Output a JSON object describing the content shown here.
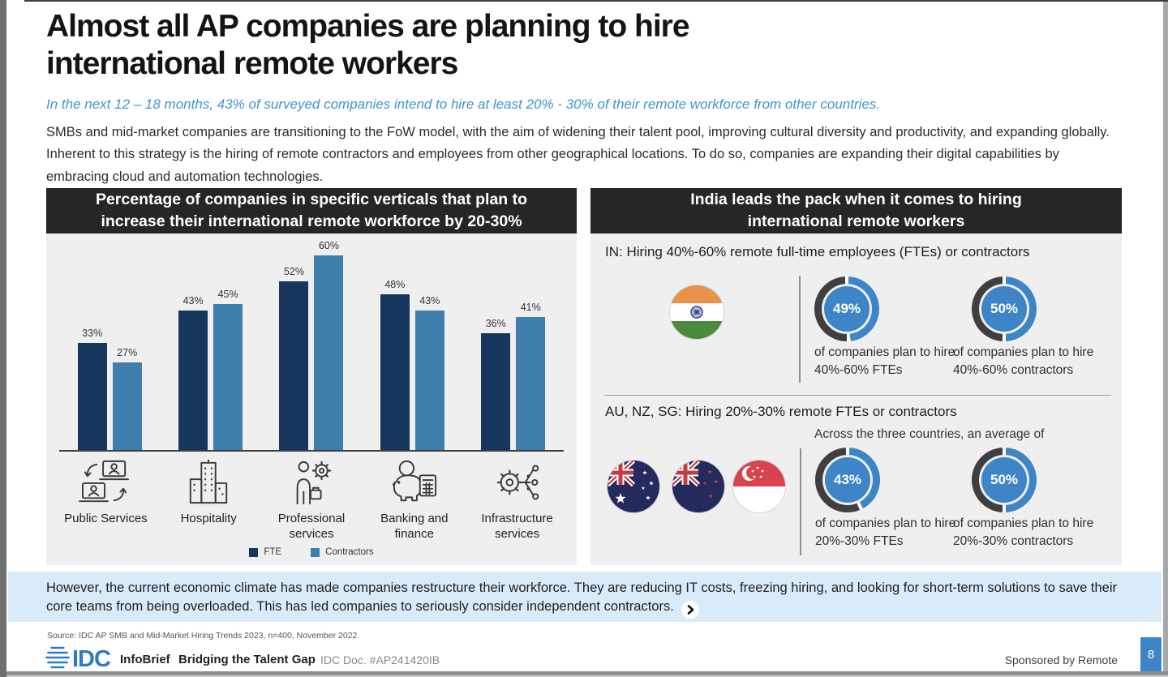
{
  "page": {
    "title": "Almost all AP companies are planning to hire international remote workers",
    "subtitle": "In the next 12 – 18 months, 43% of surveyed companies intend to hire at least 20% - 30% of their remote workforce from other countries.",
    "intro": "SMBs and mid-market companies are transitioning to the FoW model, with the aim of widening their talent pool, improving cultural diversity and productivity, and expanding globally. Inherent to this strategy is the hiring of remote contractors and employees from other geographical locations. To do so, companies are expanding their digital capabilities by embracing cloud and automation technologies."
  },
  "chart_data": {
    "type": "bar",
    "title": "Percentage of companies in specific verticals that plan to increase their international remote workforce by 20-30%",
    "categories": [
      "Public Services",
      "Hospitality",
      "Professional services",
      "Banking and finance",
      "Infrastructure services"
    ],
    "series": [
      {
        "name": "FTE",
        "color": "#17365d",
        "values": [
          33,
          43,
          52,
          48,
          36
        ]
      },
      {
        "name": "Contractors",
        "color": "#3e7fad",
        "values": [
          27,
          45,
          60,
          43,
          41
        ]
      }
    ],
    "unit": "%",
    "ylim": [
      0,
      65
    ],
    "grid": false,
    "legend_position": "bottom"
  },
  "right_panel": {
    "header": "India leads the pack when it comes to hiring international remote workers",
    "sections": [
      {
        "label": "IN: Hiring 40%-60% remote full-time employees (FTEs) or contractors",
        "flags": [
          "India"
        ],
        "donuts": [
          {
            "pct": 49,
            "value": "49%",
            "caption": "of companies plan to hire 40%-60% FTEs"
          },
          {
            "pct": 50,
            "value": "50%",
            "caption": "of companies plan to hire 40%-60% contractors"
          }
        ]
      },
      {
        "label": "AU, NZ, SG: Hiring 20%-30% remote FTEs or contractors",
        "note": "Across the three countries, an average of",
        "flags": [
          "Australia",
          "New Zealand",
          "Singapore"
        ],
        "donuts": [
          {
            "pct": 43,
            "value": "43%",
            "caption": "of companies plan to hire 20%-30% FTEs"
          },
          {
            "pct": 50,
            "value": "50%",
            "caption": "of companies plan to hire 20%-30% contractors"
          }
        ]
      }
    ]
  },
  "banner": {
    "text": "However, the current economic climate has made companies restructure their workforce. They are reducing IT costs, freezing hiring, and looking for short-term solutions to save their core teams from being overloaded. This has led companies to seriously consider independent contractors.",
    "chevron_icon": "chevron-right"
  },
  "footer": {
    "source": "Source: IDC AP SMB and Mid-Market Hiring Trends 2023, n=400, November 2022",
    "logo_text": "IDC",
    "infobrief": "InfoBrief",
    "brand": "Bridging the Talent Gap",
    "doc_id": "IDC Doc. #AP241420IB",
    "sponsor": "Sponsored by Remote",
    "page_number": "8"
  },
  "colors": {
    "bar_fte": "#17365d",
    "bar_contractors": "#3e7fad",
    "donut_blue": "#3d85c6",
    "donut_dark": "#3f3f3f",
    "panel_bg": "#efeff0",
    "header_bg": "#262626",
    "banner_bg": "#d9eaf9",
    "accent_blue": "#4293cd",
    "page_badge_bg": "#3d85c6"
  }
}
